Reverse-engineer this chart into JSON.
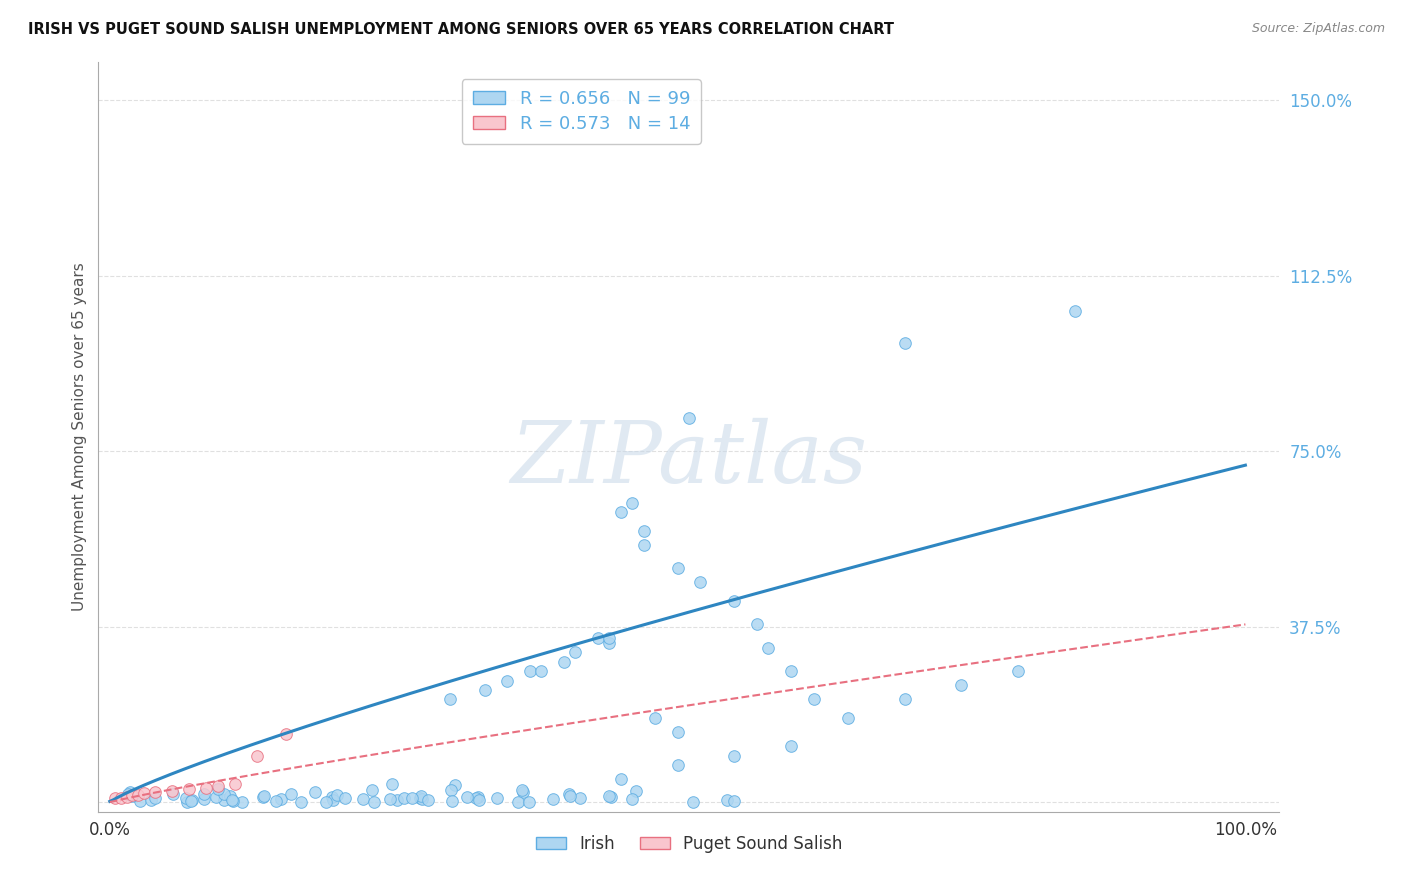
{
  "title": "IRISH VS PUGET SOUND SALISH UNEMPLOYMENT AMONG SENIORS OVER 65 YEARS CORRELATION CHART",
  "source": "Source: ZipAtlas.com",
  "ylabel": "Unemployment Among Seniors over 65 years",
  "background_color": "#ffffff",
  "irish_color": "#aed6f1",
  "irish_edge_color": "#5dade2",
  "salish_color": "#f9c6ce",
  "salish_edge_color": "#e87080",
  "irish_line_color": "#2e86c1",
  "salish_line_color": "#e87080",
  "ytick_color": "#5dade2",
  "xtick_color": "#333333",
  "grid_color": "#dddddd",
  "R_irish": 0.656,
  "N_irish": 99,
  "R_salish": 0.573,
  "N_salish": 14,
  "watermark_text": "ZIPatlas",
  "legend_label_irish": "R = 0.656   N = 99",
  "legend_label_salish": "R = 0.573   N = 14",
  "bottom_label_irish": "Irish",
  "bottom_label_salish": "Puget Sound Salish",
  "xlim": [
    0.0,
    1.0
  ],
  "ylim": [
    0.0,
    1.5
  ],
  "yticks": [
    0.0,
    0.375,
    0.75,
    1.125,
    1.5
  ],
  "yticklabels": [
    "",
    "37.5%",
    "75.0%",
    "112.5%",
    "150.0%"
  ],
  "xticks": [
    0.0,
    1.0
  ],
  "xticklabels": [
    "0.0%",
    "100.0%"
  ],
  "irish_trend_a": 0.72,
  "irish_trend_b": 1.0,
  "salish_trend_a": 0.38,
  "salish_trend_b": 1.0,
  "scatter_size": 70
}
